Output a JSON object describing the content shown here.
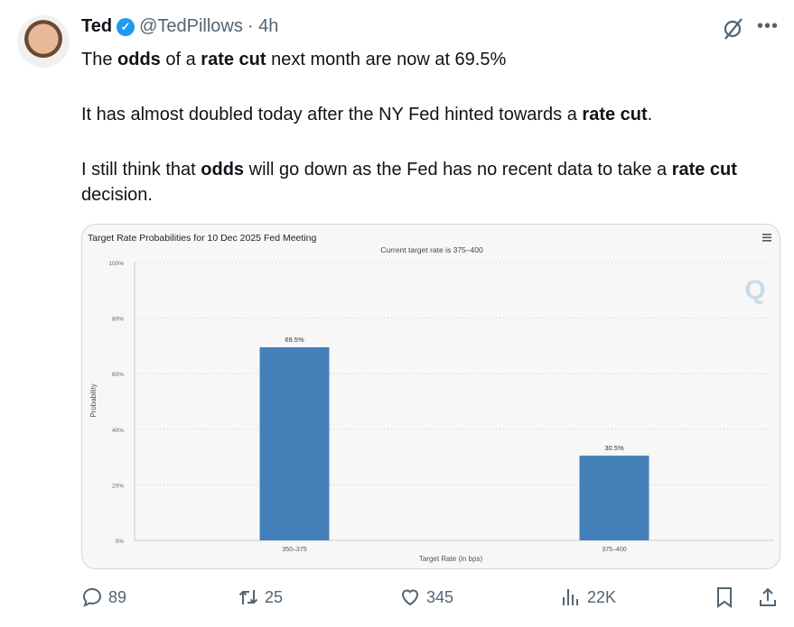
{
  "tweet": {
    "author_name": "Ted",
    "handle": "@TedPillows",
    "time": "· 4h",
    "paragraphs": [
      [
        {
          "t": "The ",
          "b": false
        },
        {
          "t": "odds",
          "b": true
        },
        {
          "t": " of a ",
          "b": false
        },
        {
          "t": "rate cut",
          "b": true
        },
        {
          "t": " next month are now at 69.5%",
          "b": false
        }
      ],
      [
        {
          "t": "It has almost doubled today after the NY Fed hinted towards a ",
          "b": false
        },
        {
          "t": "rate cut",
          "b": true
        },
        {
          "t": ".",
          "b": false
        }
      ],
      [
        {
          "t": "I still think that ",
          "b": false
        },
        {
          "t": "odds",
          "b": true
        },
        {
          "t": " will go down as the Fed has no recent data to take a ",
          "b": false
        },
        {
          "t": "rate cut",
          "b": true
        },
        {
          "t": " decision.",
          "b": false
        }
      ]
    ]
  },
  "actions": {
    "replies": "89",
    "reposts": "25",
    "likes": "345",
    "views": "22K"
  },
  "colors": {
    "bar": "#4480b8",
    "verified": "#1d9bf0",
    "muted": "#536471"
  },
  "chart_data": {
    "type": "bar",
    "title": "Target Rate Probabilities for 10 Dec 2025 Fed Meeting",
    "subtitle": "Current target rate is 375–400",
    "xlabel": "Target Rate (in bps)",
    "ylabel": "Probability",
    "categories": [
      "350–375",
      "375–400"
    ],
    "values": [
      69.5,
      30.5
    ],
    "data_labels": [
      "69.5%",
      "30.5%"
    ],
    "yticks": [
      "0%",
      "20%",
      "40%",
      "60%",
      "80%",
      "100%"
    ],
    "ylim": [
      0,
      100
    ],
    "grid": true,
    "legend": "none"
  }
}
